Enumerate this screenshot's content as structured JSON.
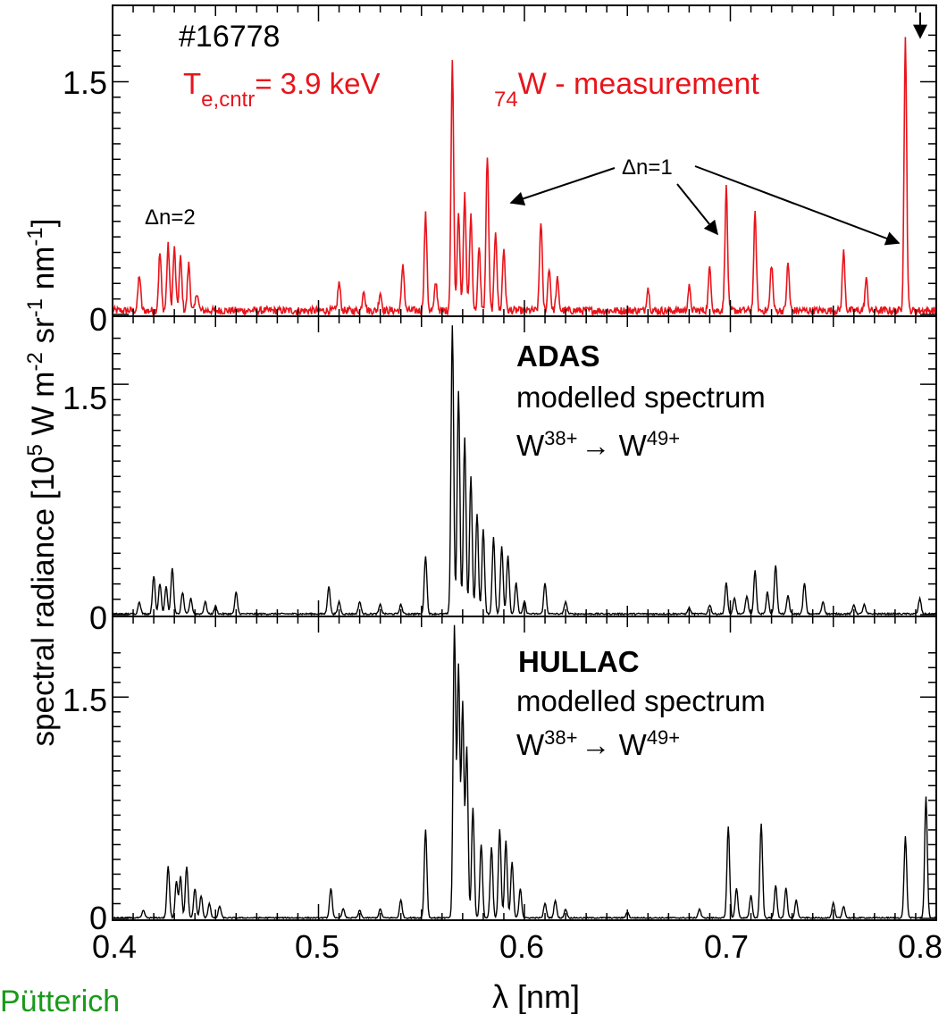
{
  "chart_data": [
    {
      "type": "line",
      "panel": "measurement",
      "shot": "#16778",
      "te_label": {
        "symbol": "T",
        "subscript": "e,cntr",
        "value": "= 3.9 keV"
      },
      "title": {
        "prefix_subscript": "74",
        "text": "W - measurement"
      },
      "annotations": [
        "Δn=2",
        "Δn=1"
      ],
      "ytick": "1.5",
      "ytick_zero": "0",
      "ylim": [
        0,
        1.9
      ],
      "xlim": [
        0.4,
        0.8
      ],
      "color": "#e8141b",
      "series": [
        {
          "peaks": [
            [
              0.413,
              0.23
            ],
            [
              0.423,
              0.37
            ],
            [
              0.427,
              0.42
            ],
            [
              0.43,
              0.4
            ],
            [
              0.433,
              0.34
            ],
            [
              0.437,
              0.3
            ],
            [
              0.441,
              0.12
            ],
            [
              0.51,
              0.18
            ],
            [
              0.522,
              0.14
            ],
            [
              0.53,
              0.12
            ],
            [
              0.541,
              0.3
            ],
            [
              0.552,
              0.62
            ],
            [
              0.557,
              0.18
            ],
            [
              0.565,
              1.6
            ],
            [
              0.568,
              0.65
            ],
            [
              0.571,
              0.75
            ],
            [
              0.574,
              0.62
            ],
            [
              0.578,
              0.4
            ],
            [
              0.582,
              1.0
            ],
            [
              0.586,
              0.52
            ],
            [
              0.59,
              0.4
            ],
            [
              0.608,
              0.58
            ],
            [
              0.612,
              0.28
            ],
            [
              0.616,
              0.2
            ],
            [
              0.66,
              0.15
            ],
            [
              0.68,
              0.15
            ],
            [
              0.69,
              0.28
            ],
            [
              0.698,
              0.79
            ],
            [
              0.712,
              0.62
            ],
            [
              0.72,
              0.3
            ],
            [
              0.728,
              0.3
            ],
            [
              0.755,
              0.38
            ],
            [
              0.766,
              0.2
            ],
            [
              0.785,
              1.75
            ]
          ],
          "noise": 0.05
        }
      ]
    },
    {
      "type": "line",
      "panel": "adas",
      "title": "ADAS",
      "subtitle": "modelled spectrum",
      "ion_range": {
        "from_sup": "38+",
        "to_sup": "49+",
        "ion": "W"
      },
      "ytick": "1.5",
      "ytick_zero": "0",
      "ylim": [
        0,
        1.85
      ],
      "xlim": [
        0.4,
        0.8
      ],
      "color": "#000000",
      "series": [
        {
          "peaks": [
            [
              0.413,
              0.08
            ],
            [
              0.42,
              0.25
            ],
            [
              0.423,
              0.2
            ],
            [
              0.426,
              0.18
            ],
            [
              0.429,
              0.3
            ],
            [
              0.434,
              0.14
            ],
            [
              0.438,
              0.1
            ],
            [
              0.445,
              0.08
            ],
            [
              0.45,
              0.05
            ],
            [
              0.46,
              0.14
            ],
            [
              0.505,
              0.18
            ],
            [
              0.51,
              0.08
            ],
            [
              0.52,
              0.08
            ],
            [
              0.53,
              0.06
            ],
            [
              0.54,
              0.06
            ],
            [
              0.552,
              0.38
            ],
            [
              0.565,
              1.88
            ],
            [
              0.568,
              1.45
            ],
            [
              0.571,
              1.15
            ],
            [
              0.574,
              0.9
            ],
            [
              0.577,
              0.65
            ],
            [
              0.58,
              0.55
            ],
            [
              0.585,
              0.5
            ],
            [
              0.589,
              0.44
            ],
            [
              0.592,
              0.38
            ],
            [
              0.596,
              0.2
            ],
            [
              0.6,
              0.08
            ],
            [
              0.61,
              0.2
            ],
            [
              0.62,
              0.08
            ],
            [
              0.68,
              0.04
            ],
            [
              0.69,
              0.06
            ],
            [
              0.698,
              0.2
            ],
            [
              0.702,
              0.1
            ],
            [
              0.708,
              0.12
            ],
            [
              0.712,
              0.28
            ],
            [
              0.718,
              0.14
            ],
            [
              0.722,
              0.32
            ],
            [
              0.728,
              0.12
            ],
            [
              0.736,
              0.2
            ],
            [
              0.745,
              0.08
            ],
            [
              0.76,
              0.06
            ],
            [
              0.765,
              0.06
            ],
            [
              0.792,
              0.1
            ]
          ],
          "noise": 0.01
        }
      ]
    },
    {
      "type": "line",
      "panel": "hullac",
      "title": "HULLAC",
      "subtitle": "modelled spectrum",
      "ion_range": {
        "from_sup": "38+",
        "to_sup": "49+",
        "ion": "W"
      },
      "ytick": "1.5",
      "ytick_zero": "0",
      "xticks": [
        "0.4",
        "0.5",
        "0.6",
        "0.7",
        "0.8"
      ],
      "ylim": [
        0,
        1.95
      ],
      "xlim": [
        0.4,
        0.8
      ],
      "color": "#000000",
      "series": [
        {
          "peaks": [
            [
              0.415,
              0.05
            ],
            [
              0.427,
              0.35
            ],
            [
              0.431,
              0.25
            ],
            [
              0.433,
              0.28
            ],
            [
              0.436,
              0.35
            ],
            [
              0.44,
              0.2
            ],
            [
              0.443,
              0.15
            ],
            [
              0.447,
              0.1
            ],
            [
              0.452,
              0.08
            ],
            [
              0.506,
              0.2
            ],
            [
              0.512,
              0.06
            ],
            [
              0.52,
              0.05
            ],
            [
              0.53,
              0.06
            ],
            [
              0.54,
              0.12
            ],
            [
              0.552,
              0.6
            ],
            [
              0.566,
              1.98
            ],
            [
              0.568,
              1.7
            ],
            [
              0.57,
              1.45
            ],
            [
              0.572,
              1.15
            ],
            [
              0.575,
              0.75
            ],
            [
              0.579,
              0.5
            ],
            [
              0.584,
              0.48
            ],
            [
              0.588,
              0.6
            ],
            [
              0.591,
              0.52
            ],
            [
              0.594,
              0.38
            ],
            [
              0.598,
              0.2
            ],
            [
              0.61,
              0.1
            ],
            [
              0.615,
              0.12
            ],
            [
              0.62,
              0.06
            ],
            [
              0.65,
              0.04
            ],
            [
              0.685,
              0.06
            ],
            [
              0.699,
              0.62
            ],
            [
              0.703,
              0.2
            ],
            [
              0.71,
              0.15
            ],
            [
              0.715,
              0.64
            ],
            [
              0.722,
              0.22
            ],
            [
              0.727,
              0.2
            ],
            [
              0.732,
              0.12
            ],
            [
              0.75,
              0.1
            ],
            [
              0.755,
              0.08
            ],
            [
              0.785,
              0.55
            ],
            [
              0.795,
              0.82
            ]
          ],
          "noise": 0.008
        }
      ]
    }
  ],
  "axes": {
    "ylabel": {
      "main": "spectral radiance [10",
      "sup5": "5",
      "rest1": " W m",
      "sup_m2": "-2",
      "rest2": " sr",
      "sup_m1a": "-1",
      "rest3": " nm",
      "sup_m1b": "-1",
      "close": "]"
    },
    "xlabel": "λ [nm]"
  },
  "credit": "Pütterich"
}
